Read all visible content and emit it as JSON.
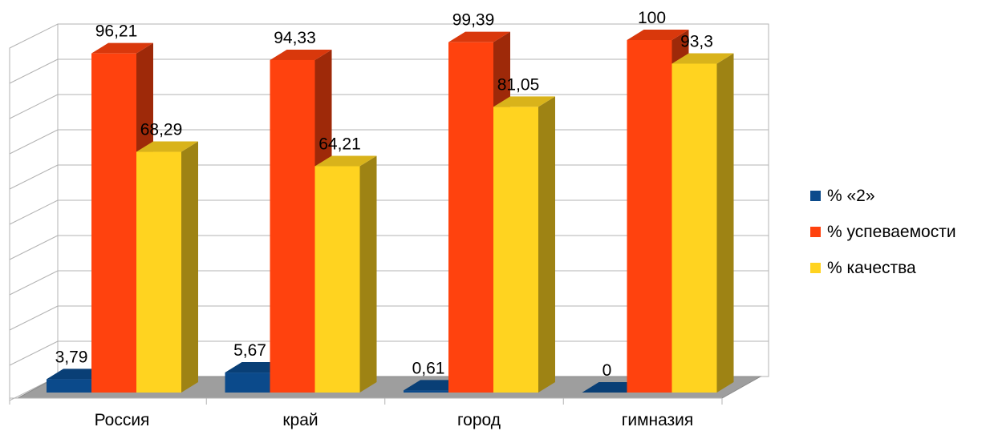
{
  "chart_data": {
    "type": "bar",
    "title": "",
    "xlabel": "",
    "ylabel": "",
    "ylim": [
      0,
      100
    ],
    "grid": true,
    "legend_position": "right",
    "categories": [
      "Россия",
      "край",
      "город",
      "гимназия"
    ],
    "series": [
      {
        "name": "% «2»",
        "values": [
          3.79,
          5.67,
          0.61,
          0
        ],
        "labels": [
          "3,79",
          "5,67",
          "0,61",
          "0"
        ],
        "color": "#0b4a8b"
      },
      {
        "name": "% успеваемости",
        "values": [
          96.21,
          94.33,
          99.39,
          100
        ],
        "labels": [
          "96,21",
          "94,33",
          "99,39",
          "100"
        ],
        "color": "#ff420e"
      },
      {
        "name": "% качества",
        "values": [
          68.29,
          64.21,
          81.05,
          93.3
        ],
        "labels": [
          "68,29",
          "64,21",
          "81,05",
          "93,3"
        ],
        "color": "#ffd320"
      }
    ]
  }
}
